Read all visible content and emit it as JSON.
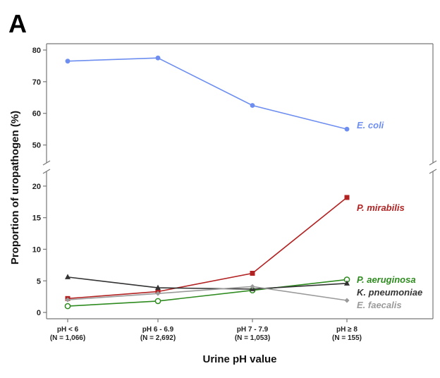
{
  "panel_label": "A",
  "chart_data": {
    "type": "line",
    "title": "",
    "xlabel": "Urine pH value",
    "ylabel": "Proportion of uropathogen (%)",
    "categories": [
      [
        "pH < 6",
        "(N = 1,066)"
      ],
      [
        "pH 6 - 6.9",
        "(N = 2,692)"
      ],
      [
        "pH 7 - 7.9",
        "(N = 1,053)"
      ],
      [
        "pH ≥ 8",
        "(N = 155)"
      ]
    ],
    "axis_break": true,
    "upper_ylim": [
      43,
      82
    ],
    "upper_yticks": [
      50,
      60,
      70,
      80
    ],
    "lower_ylim": [
      -1,
      23
    ],
    "lower_yticks": [
      0,
      5,
      10,
      15,
      20
    ],
    "series": [
      {
        "name": "E. coli",
        "color": "#6d8ef0",
        "marker": "circle-filled",
        "panel": "upper",
        "values": [
          76.5,
          77.5,
          62.5,
          55.0
        ]
      },
      {
        "name": "P. mirabilis",
        "color": "#b22222",
        "marker": "square-filled",
        "panel": "lower",
        "values": [
          2.2,
          3.3,
          6.2,
          18.2
        ]
      },
      {
        "name": "P. aeruginosa",
        "color": "#2e8b1f",
        "marker": "circle-open",
        "panel": "lower",
        "values": [
          1.0,
          1.8,
          3.5,
          5.2
        ]
      },
      {
        "name": "K. pneumoniae",
        "color": "#333333",
        "marker": "triangle-filled",
        "panel": "lower",
        "values": [
          5.6,
          3.9,
          3.7,
          4.6
        ]
      },
      {
        "name": "E. faecalis",
        "color": "#9a9a9a",
        "marker": "diamond-filled",
        "panel": "lower",
        "values": [
          2.0,
          3.0,
          4.1,
          1.9
        ]
      }
    ]
  }
}
